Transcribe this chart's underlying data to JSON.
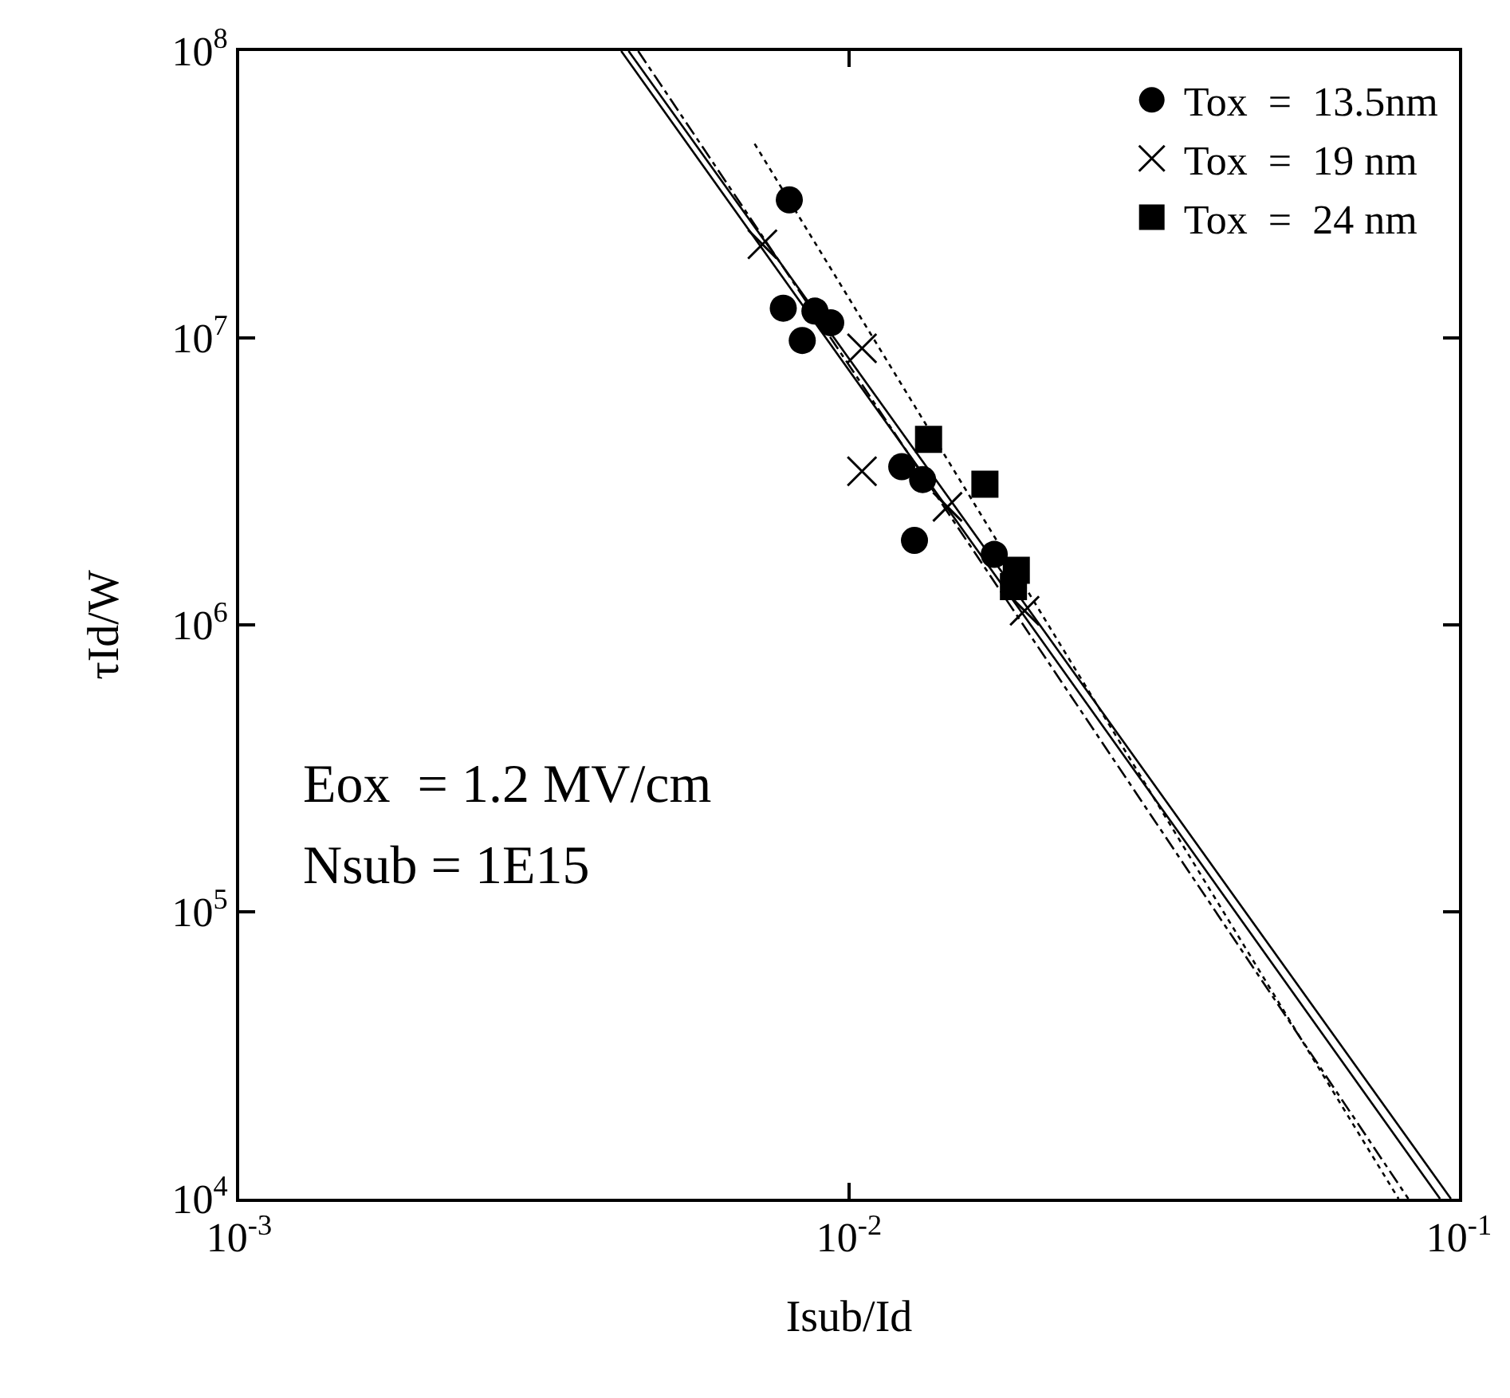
{
  "chart_data": {
    "type": "scatter",
    "xlabel": "Isub/Id",
    "ylabel": "τId/W",
    "log": "xy",
    "grid": false,
    "legend": "top right",
    "xlim": [
      0.001,
      0.1
    ],
    "ylim": [
      10000,
      100000000
    ],
    "xticks": [
      {
        "value": 0.001,
        "label": "10$^{-3}$"
      },
      {
        "value": 0.01,
        "label": "10$^{-2}$"
      },
      {
        "value": 0.1,
        "label": "10$^{-1}$"
      }
    ],
    "yticks": [
      {
        "value": 10000,
        "label": "10$^{4}$"
      },
      {
        "value": 100000,
        "label": "10$^{5}$"
      },
      {
        "value": 1000000,
        "label": "10$^{6}$"
      },
      {
        "value": 10000000,
        "label": "10$^{7}$"
      },
      {
        "value": 100000000,
        "label": "10$^{8}$"
      }
    ],
    "annotations": [
      "Eox  = 1.2 MV/cm",
      "Nsub = 1E15"
    ],
    "series": [
      {
        "name": "Tox  =  13.5nm",
        "marker": "circle",
        "color": "#000000",
        "x": [
          0.00798,
          0.0078,
          0.00838,
          0.00879,
          0.00933,
          0.0122,
          0.0132,
          0.0128,
          0.0173
        ],
        "values": [
          30300000,
          12700000,
          9800000,
          12400000,
          11300000,
          3560000,
          3210000,
          1970000,
          1760000
        ]
      },
      {
        "name": "Tox  =  19 nm",
        "marker": "cross",
        "color": "#000000",
        "x": [
          0.00721,
          0.0105,
          0.0105,
          0.0145,
          0.0194
        ],
        "values": [
          21200000,
          9200000,
          3430000,
          2580000,
          1120000
        ]
      },
      {
        "name": "Tox  =  24 nm",
        "marker": "square",
        "color": "#000000",
        "x": [
          0.0135,
          0.0167,
          0.0188,
          0.0186
        ],
        "values": [
          4430000,
          3090000,
          1550000,
          1360000
        ]
      },
      {
        "type": "line",
        "line_style": "solid",
        "color": "#000000",
        "x": [
          0.00423,
          0.0931
        ],
        "values": [
          100000000,
          10000
        ]
      },
      {
        "type": "line",
        "line_style": "solid",
        "color": "#000000",
        "x": [
          0.00435,
          0.097
        ],
        "values": [
          100000000,
          10000
        ]
      },
      {
        "type": "line",
        "line_style": "dashed",
        "color": "#000000",
        "x": [
          0.00451,
          0.0826
        ],
        "values": [
          100000000,
          10000
        ]
      },
      {
        "type": "line",
        "line_style": "dotted",
        "color": "#000000",
        "x": [
          0.007,
          0.0796
        ],
        "values": [
          47500000,
          10000
        ]
      }
    ]
  }
}
